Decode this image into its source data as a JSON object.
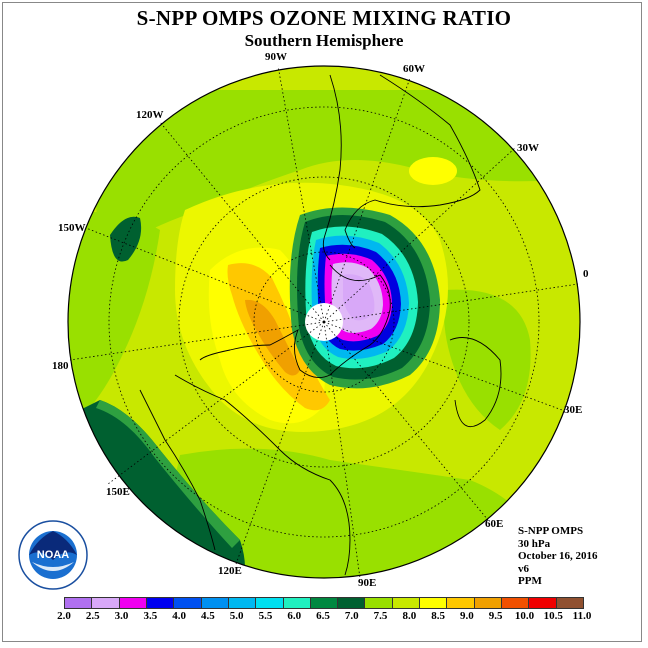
{
  "header": {
    "title": "S-NPP OMPS OZONE MIXING RATIO",
    "subtitle": "Southern Hemisphere"
  },
  "map": {
    "projection": "south-polar-stereographic",
    "longitude_labels": [
      {
        "id": "90w",
        "text": "90W"
      },
      {
        "id": "60w",
        "text": "60W"
      },
      {
        "id": "30w",
        "text": "30W"
      },
      {
        "id": "0",
        "text": "0"
      },
      {
        "id": "30e",
        "text": "30E"
      },
      {
        "id": "60e",
        "text": "60E"
      },
      {
        "id": "90e",
        "text": "90E"
      },
      {
        "id": "120e",
        "text": "120E"
      },
      {
        "id": "150e",
        "text": "150E"
      },
      {
        "id": "180",
        "text": "180"
      },
      {
        "id": "150w",
        "text": "150W"
      },
      {
        "id": "120w",
        "text": "120W"
      }
    ],
    "colors": {
      "ocean_field": "#c8e800",
      "lime": "#99e000",
      "yellow": "#ffff00",
      "light_yellow": "#ecf700",
      "gold": "#ffc800",
      "orange": "#f0a000",
      "green": "#2ea040",
      "dark_green": "#006030",
      "cyan": "#2ef0f0",
      "blue": "#0000e0",
      "magenta": "#f000f0",
      "lavender": "#e0b8f8"
    }
  },
  "info": {
    "instrument": "S-NPP OMPS",
    "level": "30 hPa",
    "date": "October 16, 2016",
    "version": "v6",
    "units": "PPM"
  },
  "colorbar": {
    "ticks": [
      "2.0",
      "2.5",
      "3.0",
      "3.5",
      "4.0",
      "4.5",
      "5.0",
      "5.5",
      "6.0",
      "6.5",
      "7.0",
      "7.5",
      "8.0",
      "8.5",
      "9.0",
      "9.5",
      "10.0",
      "10.5",
      "11.0"
    ],
    "colors": [
      "#b070f0",
      "#d8a8f8",
      "#f000f0",
      "#0000f0",
      "#0050f0",
      "#0090f0",
      "#00b8f0",
      "#00e0f0",
      "#20f0c0",
      "#008840",
      "#006030",
      "#99e000",
      "#c8e800",
      "#ffff00",
      "#ffc800",
      "#f0a000",
      "#f05000",
      "#f00000",
      "#905030"
    ]
  },
  "logo": {
    "text": "NOAA"
  }
}
